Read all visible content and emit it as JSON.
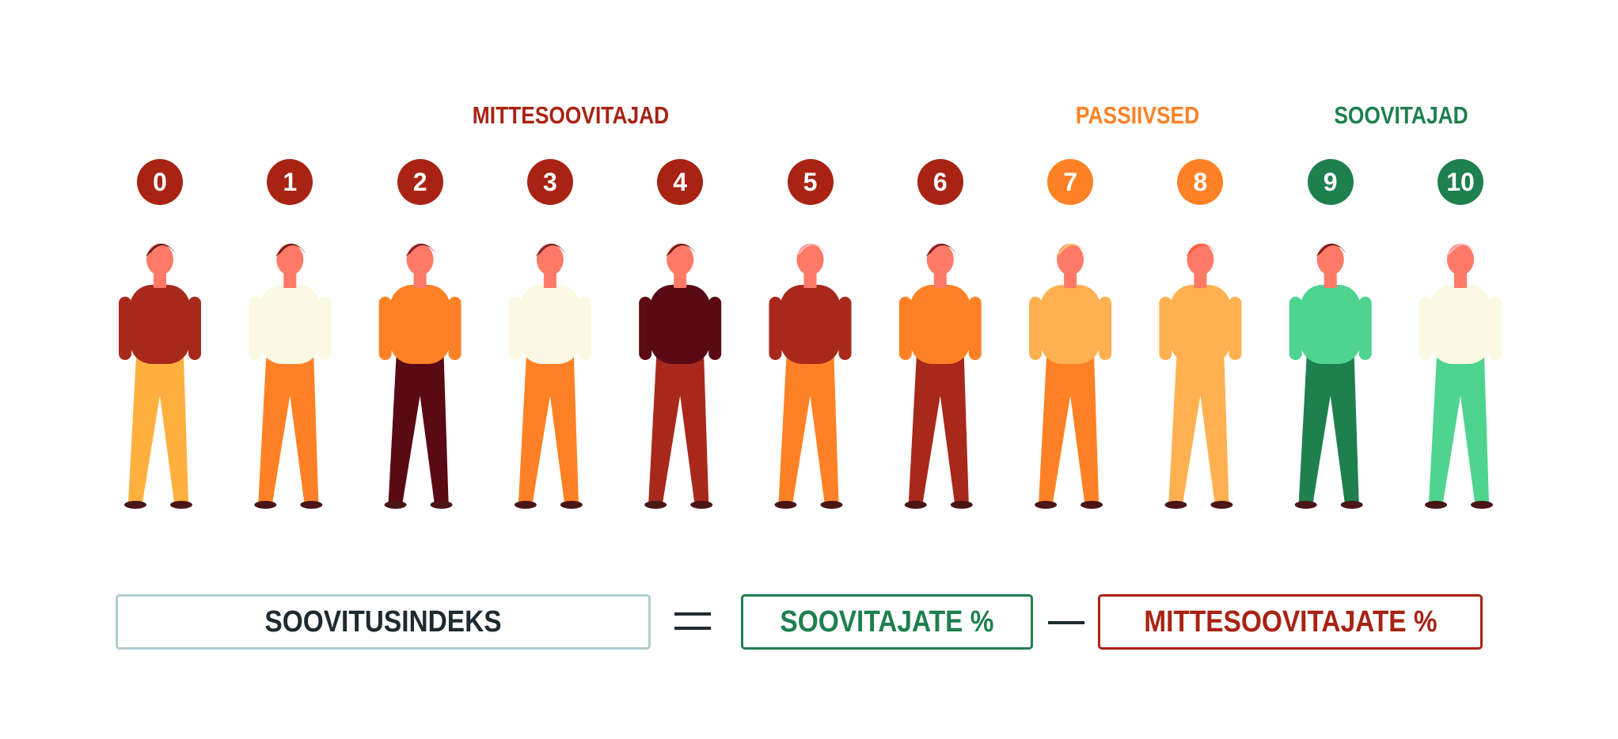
{
  "groups": {
    "detractors": {
      "label": "MITTESOOVITAJAD",
      "color": "#a82314"
    },
    "passives": {
      "label": "PASSIIVSED",
      "color": "#ff8125"
    },
    "promoters": {
      "label": "SOOVITAJAD",
      "color": "#1e7f4f"
    }
  },
  "scores": [
    {
      "label": "0",
      "group": "detractors"
    },
    {
      "label": "1",
      "group": "detractors"
    },
    {
      "label": "2",
      "group": "detractors"
    },
    {
      "label": "3",
      "group": "detractors"
    },
    {
      "label": "4",
      "group": "detractors"
    },
    {
      "label": "5",
      "group": "detractors"
    },
    {
      "label": "6",
      "group": "detractors"
    },
    {
      "label": "7",
      "group": "passives"
    },
    {
      "label": "8",
      "group": "passives"
    },
    {
      "label": "9",
      "group": "promoters"
    },
    {
      "label": "10",
      "group": "promoters"
    }
  ],
  "people_colors": [
    {
      "top": "#a8291c",
      "legs": "#ffb03f",
      "hair": "#6b1a1a"
    },
    {
      "top": "#fbf8e3",
      "legs": "#ff8125",
      "hair": "#6b1a1a"
    },
    {
      "top": "#ff8125",
      "legs": "#5a0a14",
      "hair": "#7a1f2a"
    },
    {
      "top": "#fbf8e3",
      "legs": "#ff8125",
      "hair": "#7a1f2a"
    },
    {
      "top": "#5a0a14",
      "legs": "#a8291c",
      "hair": "#6b1a1a"
    },
    {
      "top": "#a8291c",
      "legs": "#ff8125",
      "hair": "#ffb0b5"
    },
    {
      "top": "#ff8125",
      "legs": "#a8291c",
      "hair": "#7a1f2a"
    },
    {
      "top": "#ffb050",
      "legs": "#ff8125",
      "hair": "#f7c36a"
    },
    {
      "top": "#ffb050",
      "legs": "#ffb050",
      "hair": "#ff5a3a"
    },
    {
      "top": "#4ed48f",
      "legs": "#1e7f4f",
      "hair": "#6b1a1a"
    },
    {
      "top": "#fbf8e3",
      "legs": "#4ed48f",
      "hair": "#ffb0b5"
    }
  ],
  "formula": {
    "result": {
      "label": "SOOVITUSINDEKS",
      "color": "#1d2b30",
      "border": "#b0cdd0"
    },
    "equals": "=",
    "promoters": {
      "label": "SOOVITAJATE %",
      "color": "#1e7f4f"
    },
    "minus": "−",
    "detractors": {
      "label": "MITTESOOVITAJATE %",
      "color": "#a82314"
    }
  },
  "skin": "#ff7a66"
}
